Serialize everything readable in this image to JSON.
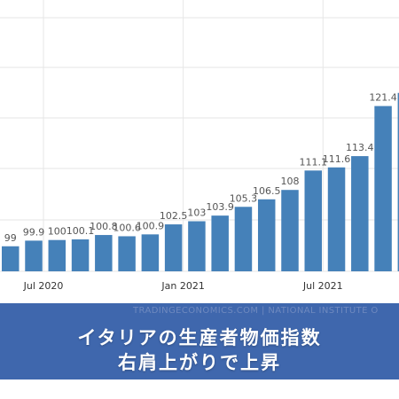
{
  "colors": {
    "bar": "#4581b9",
    "grid": "#e6e6e6",
    "banner": "#3f67ad",
    "label": "#555555"
  },
  "watermark": "TRADINGECONOMICS.COM | NATIONAL INSTITUTE O",
  "banner": {
    "line1": "イタリアの生産者物価指数",
    "line2": "右肩上がりで上昇"
  },
  "chart_data": {
    "type": "bar",
    "ylim": [
      95,
      126
    ],
    "grid": true,
    "categories": [
      "Jun 2020",
      "Jul 2020",
      "Aug 2020",
      "Sep 2020",
      "Oct 2020",
      "Nov 2020",
      "Dec 2020",
      "Jan 2021",
      "Feb 2021",
      "Mar 2021",
      "Apr 2021",
      "May 2021",
      "Jun 2021",
      "Jul 2021",
      "Aug 2021",
      "Sep 2021",
      "Oct 2021",
      "Nov 2021"
    ],
    "values": [
      99,
      99.9,
      100,
      100.1,
      100.8,
      100.6,
      100.9,
      102.5,
      103,
      103.9,
      105.3,
      106.5,
      108,
      111.1,
      111.6,
      113.4,
      121.4,
      123.5
    ],
    "value_labels": [
      "99",
      "99.9",
      "100",
      "100.1",
      "100.8",
      "100.6",
      "100.9",
      "102.5",
      "103",
      "103.9",
      "105.3",
      "106.5",
      "108",
      "111.1",
      "111.6",
      "113.4",
      "121.4",
      ""
    ],
    "x_tick_labels": [
      {
        "category": "Jul 2020",
        "label": "Jul 2020"
      },
      {
        "category": "Jan 2021",
        "label": "Jan 2021"
      },
      {
        "category": "Jul 2021",
        "label": "Jul 2021"
      }
    ]
  }
}
